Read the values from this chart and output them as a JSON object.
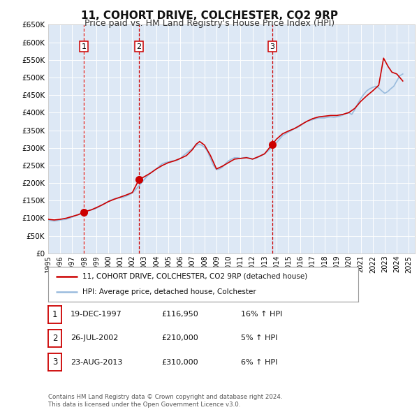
{
  "title": "11, COHORT DRIVE, COLCHESTER, CO2 9RP",
  "subtitle": "Price paid vs. HM Land Registry's House Price Index (HPI)",
  "title_fontsize": 11,
  "subtitle_fontsize": 9,
  "background_color": "#ffffff",
  "plot_bg_color": "#dde8f5",
  "grid_color": "#ffffff",
  "ylim": [
    0,
    650000
  ],
  "yticks": [
    0,
    50000,
    100000,
    150000,
    200000,
    250000,
    300000,
    350000,
    400000,
    450000,
    500000,
    550000,
    600000,
    650000
  ],
  "xlim_start": 1995.0,
  "xlim_end": 2025.5,
  "xtick_years": [
    1995,
    1996,
    1997,
    1998,
    1999,
    2000,
    2001,
    2002,
    2003,
    2004,
    2005,
    2006,
    2007,
    2008,
    2009,
    2010,
    2011,
    2012,
    2013,
    2014,
    2015,
    2016,
    2017,
    2018,
    2019,
    2020,
    2021,
    2022,
    2023,
    2024,
    2025
  ],
  "sale_color": "#cc0000",
  "hpi_color": "#99bbdd",
  "sale_linewidth": 1.2,
  "hpi_linewidth": 1.2,
  "marker_color": "#cc0000",
  "marker_size": 7,
  "vline_color": "#cc0000",
  "vline_style": "--",
  "purchases": [
    {
      "num": 1,
      "date": "19-DEC-1997",
      "year": 1997.96,
      "price": 116950,
      "pct": "16%",
      "dir": "↑"
    },
    {
      "num": 2,
      "date": "26-JUL-2002",
      "year": 2002.56,
      "price": 210000,
      "pct": "5%",
      "dir": "↑"
    },
    {
      "num": 3,
      "date": "23-AUG-2013",
      "year": 2013.64,
      "price": 310000,
      "pct": "6%",
      "dir": "↑"
    }
  ],
  "legend_sale_label": "11, COHORT DRIVE, COLCHESTER, CO2 9RP (detached house)",
  "legend_hpi_label": "HPI: Average price, detached house, Colchester",
  "footer_line1": "Contains HM Land Registry data © Crown copyright and database right 2024.",
  "footer_line2": "This data is licensed under the Open Government Licence v3.0.",
  "hpi_data": {
    "years": [
      1995.0,
      1995.25,
      1995.5,
      1995.75,
      1996.0,
      1996.25,
      1996.5,
      1996.75,
      1997.0,
      1997.25,
      1997.5,
      1997.75,
      1998.0,
      1998.25,
      1998.5,
      1998.75,
      1999.0,
      1999.25,
      1999.5,
      1999.75,
      2000.0,
      2000.25,
      2000.5,
      2000.75,
      2001.0,
      2001.25,
      2001.5,
      2001.75,
      2002.0,
      2002.25,
      2002.5,
      2002.75,
      2003.0,
      2003.25,
      2003.5,
      2003.75,
      2004.0,
      2004.25,
      2004.5,
      2004.75,
      2005.0,
      2005.25,
      2005.5,
      2005.75,
      2006.0,
      2006.25,
      2006.5,
      2006.75,
      2007.0,
      2007.25,
      2007.5,
      2007.75,
      2008.0,
      2008.25,
      2008.5,
      2008.75,
      2009.0,
      2009.25,
      2009.5,
      2009.75,
      2010.0,
      2010.25,
      2010.5,
      2010.75,
      2011.0,
      2011.25,
      2011.5,
      2011.75,
      2012.0,
      2012.25,
      2012.5,
      2012.75,
      2013.0,
      2013.25,
      2013.5,
      2013.75,
      2014.0,
      2014.25,
      2014.5,
      2014.75,
      2015.0,
      2015.25,
      2015.5,
      2015.75,
      2016.0,
      2016.25,
      2016.5,
      2016.75,
      2017.0,
      2017.25,
      2017.5,
      2017.75,
      2018.0,
      2018.25,
      2018.5,
      2018.75,
      2019.0,
      2019.25,
      2019.5,
      2019.75,
      2020.0,
      2020.25,
      2020.5,
      2020.75,
      2021.0,
      2021.25,
      2021.5,
      2021.75,
      2022.0,
      2022.25,
      2022.5,
      2022.75,
      2023.0,
      2023.25,
      2023.5,
      2023.75,
      2024.0,
      2024.25,
      2024.5
    ],
    "values": [
      95000,
      93000,
      92000,
      93000,
      95000,
      96000,
      97000,
      100000,
      103000,
      107000,
      110000,
      113000,
      117000,
      120000,
      123000,
      125000,
      128000,
      133000,
      138000,
      143000,
      148000,
      152000,
      155000,
      157000,
      158000,
      160000,
      163000,
      167000,
      172000,
      180000,
      190000,
      200000,
      210000,
      220000,
      228000,
      234000,
      240000,
      248000,
      255000,
      258000,
      260000,
      262000,
      264000,
      265000,
      270000,
      278000,
      285000,
      292000,
      298000,
      305000,
      310000,
      308000,
      302000,
      290000,
      270000,
      250000,
      238000,
      240000,
      245000,
      255000,
      263000,
      268000,
      272000,
      272000,
      270000,
      272000,
      273000,
      271000,
      268000,
      270000,
      274000,
      278000,
      283000,
      290000,
      298000,
      305000,
      315000,
      325000,
      335000,
      340000,
      345000,
      350000,
      355000,
      358000,
      363000,
      370000,
      375000,
      378000,
      380000,
      383000,
      385000,
      385000,
      385000,
      387000,
      388000,
      387000,
      388000,
      390000,
      393000,
      398000,
      400000,
      395000,
      408000,
      425000,
      440000,
      452000,
      462000,
      468000,
      472000,
      475000,
      470000,
      462000,
      455000,
      460000,
      468000,
      475000,
      490000,
      505000,
      510000
    ]
  },
  "sale_data": {
    "years": [
      1995.0,
      1995.5,
      1996.0,
      1996.5,
      1997.0,
      1997.5,
      1997.96,
      1998.2,
      1998.6,
      1999.0,
      1999.5,
      2000.0,
      2000.5,
      2001.0,
      2001.5,
      2002.0,
      2002.56,
      2003.0,
      2003.5,
      2004.0,
      2004.5,
      2005.0,
      2005.5,
      2006.0,
      2006.5,
      2007.0,
      2007.3,
      2007.6,
      2008.0,
      2008.5,
      2009.0,
      2009.5,
      2010.0,
      2010.5,
      2011.0,
      2011.5,
      2012.0,
      2012.5,
      2013.0,
      2013.64,
      2014.0,
      2014.5,
      2015.0,
      2015.5,
      2016.0,
      2016.5,
      2017.0,
      2017.5,
      2018.0,
      2018.5,
      2019.0,
      2019.5,
      2020.0,
      2020.5,
      2021.0,
      2021.5,
      2022.0,
      2022.5,
      2022.9,
      2023.3,
      2023.6,
      2024.0,
      2024.5
    ],
    "values": [
      97000,
      95000,
      97000,
      100000,
      105000,
      110000,
      116950,
      120000,
      124000,
      130000,
      138000,
      147000,
      154000,
      160000,
      166000,
      173000,
      210000,
      218000,
      228000,
      240000,
      250000,
      258000,
      263000,
      270000,
      278000,
      295000,
      310000,
      318000,
      308000,
      278000,
      240000,
      248000,
      258000,
      268000,
      270000,
      272000,
      268000,
      275000,
      283000,
      310000,
      325000,
      340000,
      348000,
      355000,
      365000,
      375000,
      383000,
      388000,
      390000,
      392000,
      392000,
      395000,
      400000,
      412000,
      432000,
      448000,
      462000,
      478000,
      555000,
      530000,
      515000,
      510000,
      490000
    ]
  }
}
